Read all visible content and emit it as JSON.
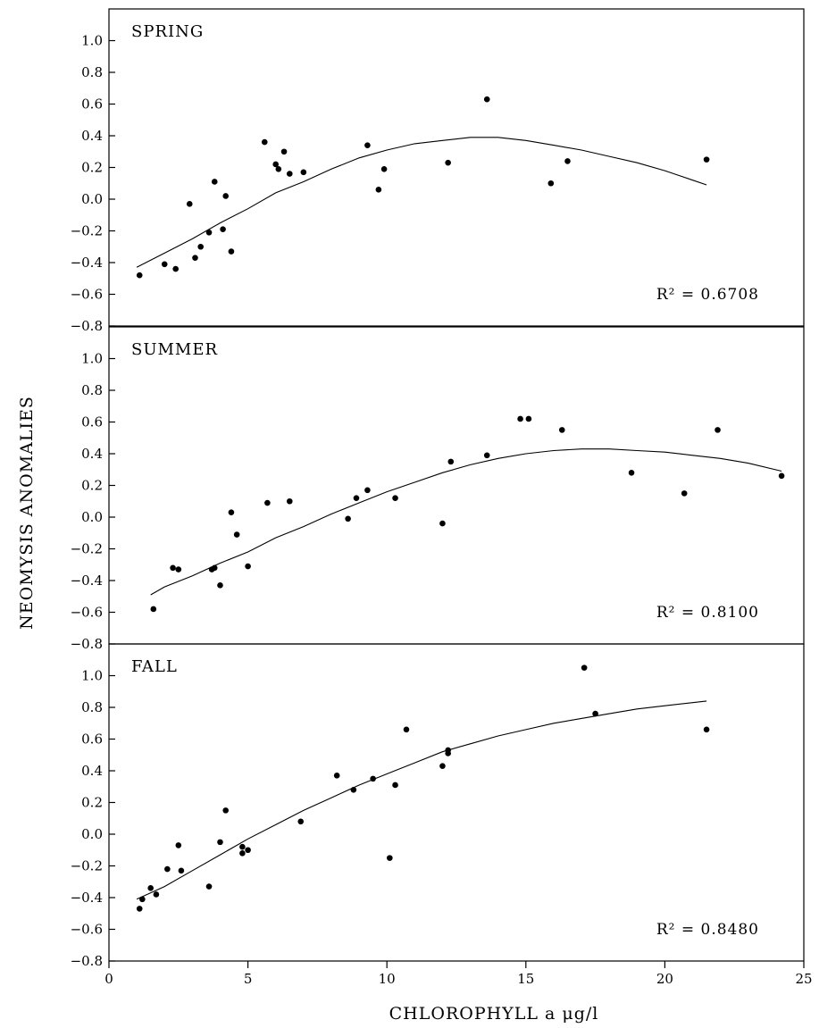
{
  "chart_data": {
    "type": "scatter",
    "xlabel": "CHLOROPHYLL a μg/l",
    "ylabel": "NEOMYSIS ANOMALIES",
    "xlim": [
      0,
      25
    ],
    "ylim": [
      -0.8,
      1.2
    ],
    "x_ticks": [
      "0",
      "5",
      "10",
      "15",
      "20",
      "25"
    ],
    "y_ticks": [
      "−0.8",
      "−0.6",
      "−0.4",
      "−0.2",
      "0.0",
      "0.2",
      "0.4",
      "0.6",
      "0.8",
      "1.0"
    ],
    "grid": false,
    "colors": {
      "marks": "#000000",
      "background": "#ffffff"
    },
    "panels": [
      {
        "title": "SPRING",
        "r2": "R² = 0.6708",
        "fit_x_range": [
          1.0,
          21.5
        ],
        "fit": [
          [
            1.0,
            -0.43
          ],
          [
            2.0,
            -0.34
          ],
          [
            3.0,
            -0.25
          ],
          [
            4.0,
            -0.15
          ],
          [
            5.0,
            -0.06
          ],
          [
            6.0,
            0.04
          ],
          [
            7.0,
            0.11
          ],
          [
            8.0,
            0.19
          ],
          [
            9.0,
            0.26
          ],
          [
            10.0,
            0.31
          ],
          [
            11.0,
            0.35
          ],
          [
            12.0,
            0.37
          ],
          [
            13.0,
            0.39
          ],
          [
            14.0,
            0.39
          ],
          [
            15.0,
            0.37
          ],
          [
            16.0,
            0.34
          ],
          [
            17.0,
            0.31
          ],
          [
            18.0,
            0.27
          ],
          [
            19.0,
            0.23
          ],
          [
            20.0,
            0.18
          ],
          [
            21.0,
            0.12
          ],
          [
            21.5,
            0.09
          ]
        ],
        "points": [
          [
            1.1,
            -0.48
          ],
          [
            2.0,
            -0.41
          ],
          [
            2.4,
            -0.44
          ],
          [
            2.9,
            -0.03
          ],
          [
            3.1,
            -0.37
          ],
          [
            3.3,
            -0.3
          ],
          [
            3.6,
            -0.21
          ],
          [
            3.8,
            0.11
          ],
          [
            4.1,
            -0.19
          ],
          [
            4.2,
            0.02
          ],
          [
            4.4,
            -0.33
          ],
          [
            5.6,
            0.36
          ],
          [
            6.0,
            0.22
          ],
          [
            6.1,
            0.19
          ],
          [
            6.3,
            0.3
          ],
          [
            6.5,
            0.16
          ],
          [
            7.0,
            0.17
          ],
          [
            9.3,
            0.34
          ],
          [
            9.7,
            0.06
          ],
          [
            9.9,
            0.19
          ],
          [
            12.2,
            0.23
          ],
          [
            13.6,
            0.63
          ],
          [
            15.9,
            0.1
          ],
          [
            16.5,
            0.24
          ],
          [
            21.5,
            0.25
          ]
        ]
      },
      {
        "title": "SUMMER",
        "r2": "R² = 0.8100",
        "fit_x_range": [
          1.5,
          24.2
        ],
        "fit": [
          [
            1.5,
            -0.49
          ],
          [
            2.0,
            -0.44
          ],
          [
            3.0,
            -0.37
          ],
          [
            4.0,
            -0.29
          ],
          [
            5.0,
            -0.22
          ],
          [
            6.0,
            -0.13
          ],
          [
            7.0,
            -0.06
          ],
          [
            8.0,
            0.02
          ],
          [
            9.0,
            0.09
          ],
          [
            10.0,
            0.16
          ],
          [
            11.0,
            0.22
          ],
          [
            12.0,
            0.28
          ],
          [
            13.0,
            0.33
          ],
          [
            14.0,
            0.37
          ],
          [
            15.0,
            0.4
          ],
          [
            16.0,
            0.42
          ],
          [
            17.0,
            0.43
          ],
          [
            18.0,
            0.43
          ],
          [
            19.0,
            0.42
          ],
          [
            20.0,
            0.41
          ],
          [
            21.0,
            0.39
          ],
          [
            22.0,
            0.37
          ],
          [
            23.0,
            0.34
          ],
          [
            24.2,
            0.29
          ]
        ],
        "points": [
          [
            1.6,
            -0.58
          ],
          [
            2.3,
            -0.32
          ],
          [
            2.5,
            -0.33
          ],
          [
            3.7,
            -0.33
          ],
          [
            3.8,
            -0.32
          ],
          [
            4.0,
            -0.43
          ],
          [
            4.4,
            0.03
          ],
          [
            4.6,
            -0.11
          ],
          [
            5.0,
            -0.31
          ],
          [
            5.7,
            0.09
          ],
          [
            6.5,
            0.1
          ],
          [
            8.6,
            -0.01
          ],
          [
            8.9,
            0.12
          ],
          [
            9.3,
            0.17
          ],
          [
            10.3,
            0.12
          ],
          [
            12.0,
            -0.04
          ],
          [
            12.3,
            0.35
          ],
          [
            13.6,
            0.39
          ],
          [
            14.8,
            0.62
          ],
          [
            15.1,
            0.62
          ],
          [
            16.3,
            0.55
          ],
          [
            18.8,
            0.28
          ],
          [
            20.7,
            0.15
          ],
          [
            21.9,
            0.55
          ],
          [
            24.2,
            0.26
          ]
        ]
      },
      {
        "title": "FALL",
        "r2": "R² = 0.8480",
        "fit_x_range": [
          1.0,
          21.5
        ],
        "fit": [
          [
            1.0,
            -0.41
          ],
          [
            2.0,
            -0.33
          ],
          [
            3.0,
            -0.23
          ],
          [
            4.0,
            -0.13
          ],
          [
            5.0,
            -0.03
          ],
          [
            6.0,
            0.06
          ],
          [
            7.0,
            0.15
          ],
          [
            8.0,
            0.23
          ],
          [
            9.0,
            0.31
          ],
          [
            10.0,
            0.38
          ],
          [
            11.0,
            0.45
          ],
          [
            12.0,
            0.52
          ],
          [
            13.0,
            0.57
          ],
          [
            14.0,
            0.62
          ],
          [
            15.0,
            0.66
          ],
          [
            16.0,
            0.7
          ],
          [
            17.0,
            0.73
          ],
          [
            18.0,
            0.76
          ],
          [
            19.0,
            0.79
          ],
          [
            20.0,
            0.81
          ],
          [
            21.0,
            0.83
          ],
          [
            21.5,
            0.84
          ]
        ],
        "points": [
          [
            1.1,
            -0.47
          ],
          [
            1.2,
            -0.41
          ],
          [
            1.5,
            -0.34
          ],
          [
            1.7,
            -0.38
          ],
          [
            2.1,
            -0.22
          ],
          [
            2.5,
            -0.07
          ],
          [
            2.6,
            -0.23
          ],
          [
            3.6,
            -0.33
          ],
          [
            4.0,
            -0.05
          ],
          [
            4.2,
            0.15
          ],
          [
            4.8,
            -0.08
          ],
          [
            4.8,
            -0.12
          ],
          [
            5.0,
            -0.1
          ],
          [
            6.9,
            0.08
          ],
          [
            8.2,
            0.37
          ],
          [
            8.8,
            0.28
          ],
          [
            9.5,
            0.35
          ],
          [
            10.1,
            -0.15
          ],
          [
            10.3,
            0.31
          ],
          [
            10.7,
            0.66
          ],
          [
            12.0,
            0.43
          ],
          [
            12.2,
            0.51
          ],
          [
            12.2,
            0.53
          ],
          [
            17.1,
            1.05
          ],
          [
            17.5,
            0.76
          ],
          [
            21.5,
            0.66
          ]
        ]
      }
    ]
  }
}
